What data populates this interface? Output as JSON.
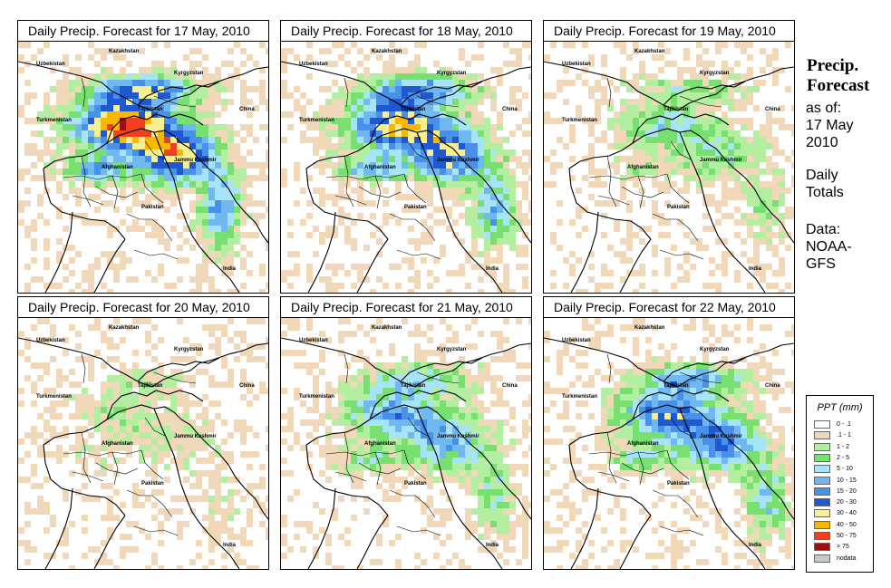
{
  "panels": [
    {
      "title": "Daily Precip. Forecast for  17 May, 2010",
      "intensity": 1.0
    },
    {
      "title": "Daily Precip. Forecast for  18 May, 2010",
      "intensity": 0.85
    },
    {
      "title": "Daily Precip. Forecast for  19 May, 2010",
      "intensity": 0.35
    },
    {
      "title": "Daily Precip. Forecast for  20 May, 2010",
      "intensity": 0.2
    },
    {
      "title": "Daily Precip. Forecast for  21 May, 2010",
      "intensity": 0.55
    },
    {
      "title": "Daily Precip. Forecast for  22 May, 2010",
      "intensity": 0.7
    }
  ],
  "map_labels": {
    "kazakhstan": "Kazakhstan",
    "uzbekistan": "Uzbekistan",
    "kyrgyzstan": "Kyrgyzstan",
    "tajikistan": "Tajikistan",
    "turkmenistan": "Turkmenistan",
    "china": "China",
    "afghanistan": "Afghanistan",
    "jammu_kashmir": "Jammu Kashmir",
    "pakistan": "Pakistan",
    "india": "India"
  },
  "side": {
    "title_line1": "Precip.",
    "title_line2": "Forecast",
    "asof_line1": "as of:",
    "asof_line2": "17 May",
    "asof_line3": "2010",
    "totals_line1": "Daily",
    "totals_line2": "Totals",
    "data_line1": "Data:",
    "data_line2": "NOAA-",
    "data_line3": "GFS"
  },
  "legend": {
    "title": "PPT (mm)",
    "items": [
      {
        "label": "0 - .1",
        "color": "#ffffff"
      },
      {
        "label": ".1 - 1",
        "color": "#f0d8b8"
      },
      {
        "label": "1 - 2",
        "color": "#b4eea0"
      },
      {
        "label": "2 - 5",
        "color": "#78e070"
      },
      {
        "label": "5 - 10",
        "color": "#a8e4f8"
      },
      {
        "label": "10 - 15",
        "color": "#70b8f0"
      },
      {
        "label": "15 - 20",
        "color": "#4890e8"
      },
      {
        "label": "20 - 30",
        "color": "#2058d0"
      },
      {
        "label": "30 - 40",
        "color": "#f8f090"
      },
      {
        "label": "40 - 50",
        "color": "#f8b800"
      },
      {
        "label": "50 - 75",
        "color": "#f04020"
      },
      {
        "label": "> 75",
        "color": "#a01010"
      },
      {
        "label": "nodata",
        "color": "#c8c8c8"
      }
    ]
  }
}
